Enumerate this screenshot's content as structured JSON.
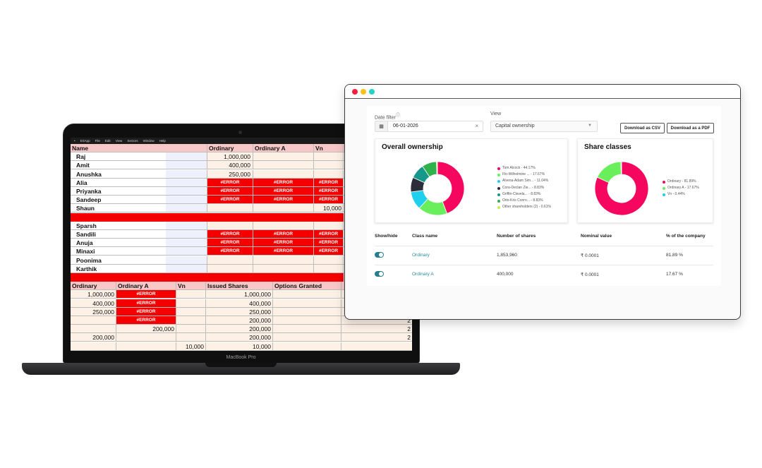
{
  "laptop": {
    "model_label": "MacBook Pro",
    "menubar": [
      "•",
      "ESApp",
      "File",
      "Edit",
      "View",
      "Sectors",
      "Window",
      "Help"
    ],
    "sheet1": {
      "headers": [
        "Name",
        "Ordinary",
        "Ordinary A",
        "Vn"
      ],
      "rows": [
        {
          "name": "Raj",
          "ord": "1,000,000",
          "orda": "",
          "vn": "",
          "err": false
        },
        {
          "name": "Amit",
          "ord": "400,000",
          "orda": "",
          "vn": "",
          "err": false
        },
        {
          "name": "Anushka",
          "ord": "250,000",
          "orda": "",
          "vn": "",
          "err": false
        },
        {
          "name": "Alia",
          "ord": "#ERROR",
          "orda": "#ERROR",
          "vn": "#ERROR",
          "err": true
        },
        {
          "name": "Priyanka",
          "ord": "#ERROR",
          "orda": "#ERROR",
          "vn": "#ERROR",
          "err": true
        },
        {
          "name": "Sandeep",
          "ord": "#ERROR",
          "orda": "#ERROR",
          "vn": "#ERROR",
          "err": true
        },
        {
          "name": "Shaun",
          "ord": "",
          "orda": "",
          "vn": "10,000",
          "err": false
        },
        {
          "name": "",
          "ord": "",
          "orda": "",
          "vn": "",
          "err": false,
          "redbar": true
        },
        {
          "name": "Sparsh",
          "ord": "",
          "orda": "",
          "vn": "",
          "err": false
        },
        {
          "name": "Sandili",
          "ord": "#ERROR",
          "orda": "#ERROR",
          "vn": "#ERROR",
          "err": true
        },
        {
          "name": "Anuja",
          "ord": "#ERROR",
          "orda": "#ERROR",
          "vn": "#ERROR",
          "err": true
        },
        {
          "name": "Minaxi",
          "ord": "#ERROR",
          "orda": "#ERROR",
          "vn": "#ERROR",
          "err": true
        },
        {
          "name": "Poonima",
          "ord": "",
          "orda": "",
          "vn": "",
          "err": false
        },
        {
          "name": "Karthik",
          "ord": "",
          "orda": "",
          "vn": "",
          "err": false
        }
      ]
    },
    "sheet2": {
      "headers": [
        "Ordinary",
        "Ordinary A",
        "Vn",
        "Issued Shares",
        "Options Granted"
      ],
      "rows": [
        {
          "ord": "1,000,000",
          "orda": "#ERROR",
          "vn": "",
          "iss": "1,000,000",
          "x": ""
        },
        {
          "ord": "400,000",
          "orda": "#ERROR",
          "vn": "",
          "iss": "400,000",
          "x": ""
        },
        {
          "ord": "250,000",
          "orda": "#ERROR",
          "vn": "",
          "iss": "250,000",
          "x": ""
        },
        {
          "ord": "",
          "orda": "#ERROR",
          "vn": "",
          "iss": "200,000",
          "x": "2"
        },
        {
          "ord": "",
          "orda": "200,000",
          "vn": "",
          "iss": "200,000",
          "x": "2"
        },
        {
          "ord": "200,000",
          "orda": "",
          "vn": "",
          "iss": "200,000",
          "x": "2"
        },
        {
          "ord": "",
          "orda": "",
          "vn": "10,000",
          "iss": "10,000",
          "x": ""
        }
      ]
    }
  },
  "app": {
    "date_filter_label": "Date filter",
    "date_value": "06-01-2026",
    "view_label": "View",
    "view_value": "Capital ownership",
    "download_csv_label": "Download as CSV",
    "download_pdf_label": "Download as a PDF",
    "overall_title": "Overall ownership",
    "classes_title": "Share classes",
    "colors": {
      "accent": "#2a7d8c",
      "pink": "#f5075f",
      "light_green": "#6aef5c",
      "cyan": "#1fcfee",
      "dark": "#2d2d3a",
      "teal": "#16978b",
      "green": "#2fb14b",
      "lime": "#c3ef57"
    },
    "table": {
      "headers": [
        "Show/hide",
        "Class name",
        "Number of shares",
        "Nominal value",
        "% of the company"
      ],
      "rows": [
        {
          "class_name": "Ordinary",
          "shares": "1,853,960",
          "nominal": "₹ 0.0001",
          "percent": "81.89 %"
        },
        {
          "class_name": "Ordinary A",
          "shares": "400,000",
          "nominal": "₹ 0.0001",
          "percent": "17.67 %"
        }
      ]
    }
  },
  "chart_data": [
    {
      "type": "pie",
      "title": "Overall ownership",
      "categories": [
        "Tom Alcock",
        "Flo-Wilhelmine ...",
        "Alvena-Adam Sim...",
        "Cora-Declan Zie...",
        "Griffin-Clevela...",
        "Orlo-Kris Conro...",
        "Other shareholders (2)"
      ],
      "values": [
        44.17,
        17.67,
        11.04,
        8.83,
        8.83,
        8.83,
        0.61
      ],
      "legend_labels": [
        "Tom Alcock - 44.17%",
        "Flo-Wilhelmine ... - 17.67%",
        "Alvena-Adam Sim... - 11.04%",
        "Cora-Declan Zie... - 8.83%",
        "Griffin-Clevela... - 8.83%",
        "Orlo-Kris Conro... - 8.83%",
        "Other shareholders (2) - 0.61%"
      ],
      "colors": [
        "#f5075f",
        "#6aef5c",
        "#1fcfee",
        "#2d2d3a",
        "#16978b",
        "#2fb14b",
        "#c3ef57"
      ],
      "legend": "right"
    },
    {
      "type": "pie",
      "title": "Share classes",
      "categories": [
        "Ordinary",
        "Ordinary A",
        "Vn"
      ],
      "values": [
        81.89,
        17.67,
        0.44
      ],
      "legend_labels": [
        "Ordinary - 81.89%",
        "Ordinary A - 17.67%",
        "Vn - 0.44%"
      ],
      "colors": [
        "#f5075f",
        "#6aef5c",
        "#1fcfee"
      ],
      "legend": "right"
    }
  ]
}
